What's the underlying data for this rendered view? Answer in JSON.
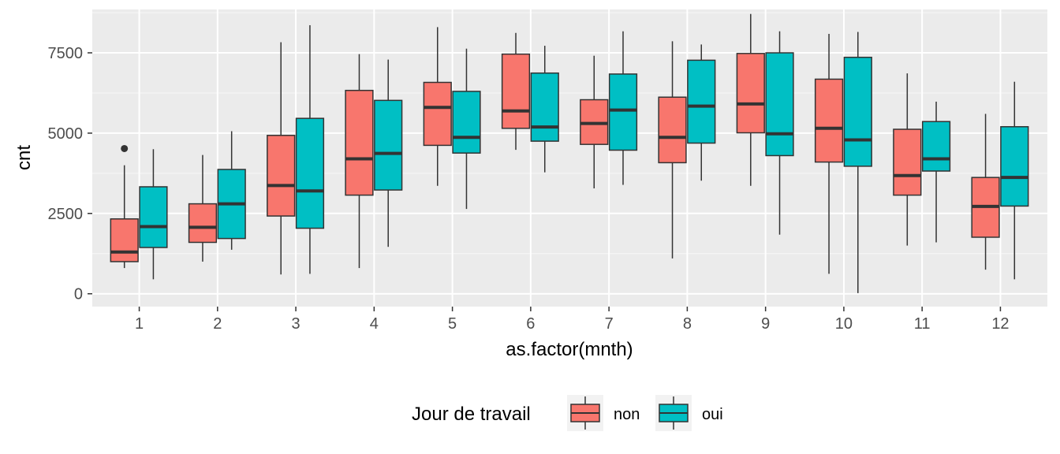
{
  "chart_data": {
    "type": "boxplot",
    "xlabel": "as.factor(mnth)",
    "ylabel": "cnt",
    "categories": [
      "1",
      "2",
      "3",
      "4",
      "5",
      "6",
      "7",
      "8",
      "9",
      "10",
      "11",
      "12"
    ],
    "y_ticks": [
      0,
      2500,
      5000,
      7500
    ],
    "ylim": [
      -400,
      8850
    ],
    "grid": true,
    "legend": {
      "title": "Jour de travail",
      "position": "bottom",
      "entries": [
        "non",
        "oui"
      ]
    },
    "colors": {
      "panel_background": "#ebebeb",
      "grid_major": "#ffffff",
      "grid_minor": "#f7f7f7",
      "box_outline": "#333333",
      "median": "#333333"
    },
    "series": [
      {
        "name": "non",
        "color": "#f8766d",
        "boxes": [
          {
            "min": 800,
            "q1": 1000,
            "median": 1300,
            "q3": 2330,
            "max": 4000,
            "outliers": [
              4520
            ]
          },
          {
            "min": 1000,
            "q1": 1600,
            "median": 2070,
            "q3": 2800,
            "max": 4320,
            "outliers": []
          },
          {
            "min": 600,
            "q1": 2420,
            "median": 3370,
            "q3": 4930,
            "max": 7830,
            "outliers": []
          },
          {
            "min": 800,
            "q1": 3070,
            "median": 4200,
            "q3": 6330,
            "max": 7460,
            "outliers": []
          },
          {
            "min": 3360,
            "q1": 4620,
            "median": 5800,
            "q3": 6580,
            "max": 8300,
            "outliers": []
          },
          {
            "min": 4480,
            "q1": 5150,
            "median": 5690,
            "q3": 7460,
            "max": 8120,
            "outliers": []
          },
          {
            "min": 3280,
            "q1": 4650,
            "median": 5300,
            "q3": 6040,
            "max": 7410,
            "outliers": []
          },
          {
            "min": 1100,
            "q1": 4080,
            "median": 4870,
            "q3": 6120,
            "max": 7860,
            "outliers": []
          },
          {
            "min": 3360,
            "q1": 5010,
            "median": 5910,
            "q3": 7480,
            "max": 8710,
            "outliers": []
          },
          {
            "min": 620,
            "q1": 4100,
            "median": 5150,
            "q3": 6680,
            "max": 8090,
            "outliers": []
          },
          {
            "min": 1500,
            "q1": 3070,
            "median": 3680,
            "q3": 5120,
            "max": 6860,
            "outliers": []
          },
          {
            "min": 750,
            "q1": 1760,
            "median": 2720,
            "q3": 3620,
            "max": 5600,
            "outliers": []
          }
        ]
      },
      {
        "name": "oui",
        "color": "#00bfc4",
        "boxes": [
          {
            "min": 450,
            "q1": 1440,
            "median": 2090,
            "q3": 3330,
            "max": 4500,
            "outliers": []
          },
          {
            "min": 1370,
            "q1": 1720,
            "median": 2800,
            "q3": 3870,
            "max": 5060,
            "outliers": []
          },
          {
            "min": 620,
            "q1": 2040,
            "median": 3200,
            "q3": 5460,
            "max": 8360,
            "outliers": []
          },
          {
            "min": 1460,
            "q1": 3230,
            "median": 4370,
            "q3": 6020,
            "max": 7290,
            "outliers": []
          },
          {
            "min": 2640,
            "q1": 4380,
            "median": 4870,
            "q3": 6300,
            "max": 7630,
            "outliers": []
          },
          {
            "min": 3780,
            "q1": 4750,
            "median": 5190,
            "q3": 6870,
            "max": 7720,
            "outliers": []
          },
          {
            "min": 3390,
            "q1": 4470,
            "median": 5720,
            "q3": 6840,
            "max": 8170,
            "outliers": []
          },
          {
            "min": 3520,
            "q1": 4690,
            "median": 5840,
            "q3": 7270,
            "max": 7760,
            "outliers": []
          },
          {
            "min": 1840,
            "q1": 4300,
            "median": 4980,
            "q3": 7500,
            "max": 8170,
            "outliers": []
          },
          {
            "min": 20,
            "q1": 3970,
            "median": 4790,
            "q3": 7360,
            "max": 8150,
            "outliers": []
          },
          {
            "min": 1600,
            "q1": 3820,
            "median": 4200,
            "q3": 5360,
            "max": 5980,
            "outliers": []
          },
          {
            "min": 450,
            "q1": 2730,
            "median": 3620,
            "q3": 5200,
            "max": 6600,
            "outliers": []
          }
        ]
      }
    ]
  }
}
